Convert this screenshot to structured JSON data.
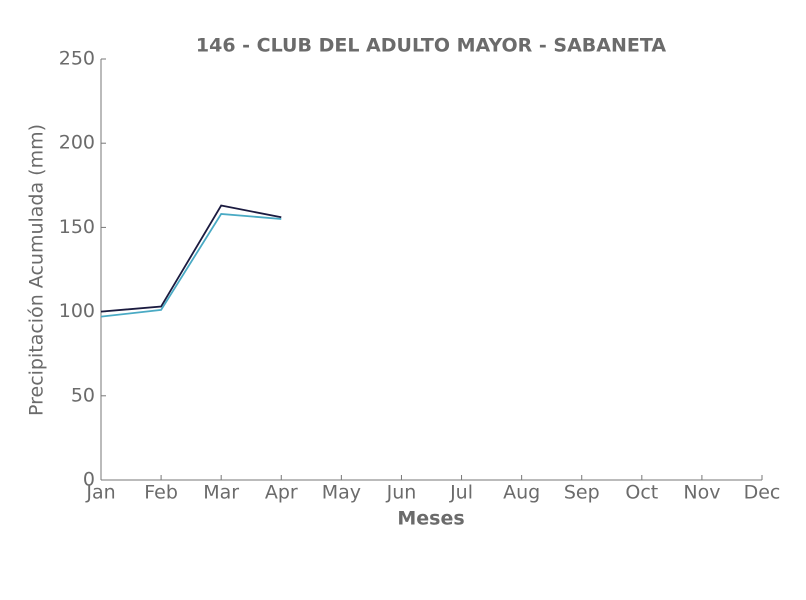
{
  "chart_data": {
    "type": "line",
    "title": "146 - CLUB DEL ADULTO MAYOR - SABANETA",
    "x_label": "Meses",
    "y_label": "Precipitación Acumulada (mm)",
    "categories": [
      "Jan",
      "Feb",
      "Mar",
      "Apr",
      "May",
      "Jun",
      "Jul",
      "Aug",
      "Sep",
      "Oct",
      "Nov",
      "Dec"
    ],
    "series": [
      {
        "color": "#1b1b40",
        "values": [
          100,
          103,
          163,
          156,
          null,
          null,
          null,
          null,
          null,
          null,
          null,
          null
        ]
      },
      {
        "color": "#4aaac4",
        "values": [
          97,
          101,
          158,
          155,
          null,
          null,
          null,
          null,
          null,
          null,
          null,
          null
        ]
      }
    ],
    "ylim": [
      0,
      250
    ],
    "yticks": [
      0,
      50,
      100,
      150,
      200,
      250
    ],
    "grid": false
  }
}
